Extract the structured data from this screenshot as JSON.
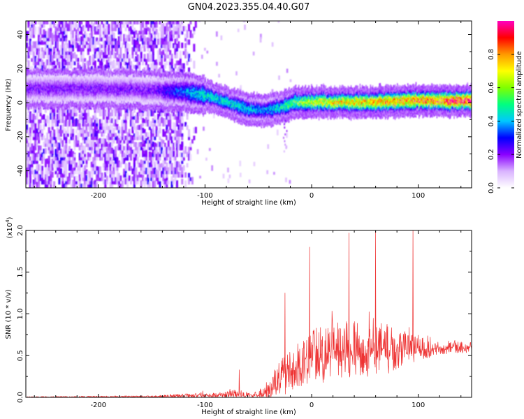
{
  "title": "GN04.2023.355.04.40.G07",
  "chart_data": [
    {
      "type": "heatmap",
      "xlabel": "Height of straight line (km)",
      "ylabel": "Frequency (Hz)",
      "xlim": [
        -268,
        150
      ],
      "ylim": [
        -50,
        48
      ],
      "x_ticks": [
        -200,
        -100,
        0,
        100
      ],
      "y_ticks": [
        -40,
        -20,
        0,
        20,
        40
      ],
      "x_tick_labels": [
        "-200",
        "-100",
        "0",
        "100"
      ],
      "y_tick_labels": [
        "-40",
        "-20",
        "0",
        "20",
        "40"
      ],
      "colorbar": {
        "label": "Normalized spectral amplitude",
        "range": [
          0,
          1
        ],
        "ticks": [
          0.0,
          0.2,
          0.4,
          0.6,
          0.8
        ],
        "tick_labels": [
          "0.0",
          "0.2",
          "0.4",
          "0.6",
          "0.8"
        ],
        "colors": [
          "#ffffff",
          "#d9b3ff",
          "#8a00ff",
          "#0000ff",
          "#00c8ff",
          "#00ff80",
          "#80ff00",
          "#ffff00",
          "#ff9900",
          "#ff0000",
          "#ff00c0"
        ]
      },
      "noise_region_x": [
        -268,
        -108
      ],
      "ridge": {
        "x": [
          -268,
          -200,
          -150,
          -120,
          -100,
          -80,
          -60,
          -45,
          -30,
          -15,
          0,
          50,
          100,
          150
        ],
        "frequency": [
          8,
          8,
          7,
          6,
          4,
          0,
          -4,
          -5,
          -3,
          0,
          0,
          0,
          1,
          1
        ],
        "amplitude": [
          0.2,
          0.2,
          0.2,
          0.35,
          0.45,
          0.45,
          0.4,
          0.35,
          0.45,
          0.55,
          0.65,
          0.75,
          0.8,
          0.95
        ]
      }
    },
    {
      "type": "line",
      "xlabel": "Height of straight line (km)",
      "ylabel": "SNR (10 * v/v)",
      "y_scale_label": "(x10",
      "y_scale_exponent": "4",
      "y_scale_suffix": ")",
      "xlim": [
        -268,
        150
      ],
      "ylim": [
        0,
        2.0
      ],
      "x_ticks": [
        -200,
        -100,
        0,
        100
      ],
      "y_ticks": [
        0.0,
        0.5,
        1.0,
        1.5,
        2.0
      ],
      "x_tick_labels": [
        "-200",
        "-100",
        "0",
        "100"
      ],
      "y_tick_labels": [
        "0.0",
        "0.5",
        "1.0",
        "1.5",
        "2.0"
      ],
      "color": "#ee3333",
      "envelope": {
        "x": [
          -268,
          -150,
          -110,
          -90,
          -70,
          -55,
          -45,
          -35,
          -25,
          -10,
          0,
          20,
          40,
          60,
          80,
          100,
          120,
          150
        ],
        "baseline": [
          0.0,
          0.01,
          0.02,
          0.05,
          0.08,
          0.05,
          0.1,
          0.3,
          0.55,
          0.7,
          0.85,
          1.0,
          1.05,
          1.05,
          1.0,
          1.0,
          1.0,
          1.0
        ],
        "spread": [
          0.01,
          0.01,
          0.03,
          0.08,
          0.12,
          0.1,
          0.2,
          0.45,
          0.65,
          0.7,
          0.8,
          0.85,
          0.9,
          0.85,
          0.6,
          0.35,
          0.2,
          0.15
        ]
      },
      "peaks": [
        {
          "x": 60,
          "y": 2.0
        },
        {
          "x": 95,
          "y": 2.0
        },
        {
          "x": 35,
          "y": 1.97
        },
        {
          "x": -2,
          "y": 1.8
        },
        {
          "x": -25,
          "y": 1.25
        },
        {
          "x": -68,
          "y": 0.33
        }
      ]
    }
  ]
}
